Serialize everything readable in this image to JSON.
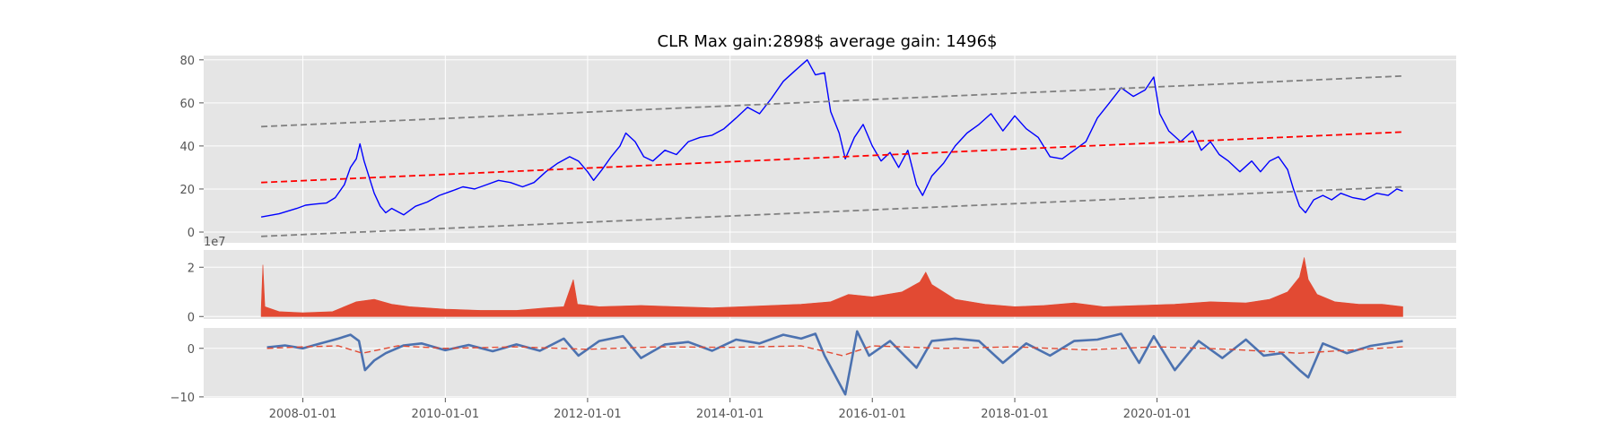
{
  "chart_data": [
    {
      "type": "line",
      "panel": "price",
      "title": "CLR Max gain:2898$  average gain: 1496$",
      "ylim": [
        -5,
        82
      ],
      "yticks": [
        0,
        20,
        40,
        60,
        80
      ],
      "grid": true,
      "series": [
        {
          "role": "price",
          "color": "#0000ff",
          "style": "solid",
          "points": [
            [
              "2007-06-01",
              7
            ],
            [
              "2007-09-01",
              8.5
            ],
            [
              "2007-12-01",
              11
            ],
            [
              "2008-01-15",
              12.5
            ],
            [
              "2008-03-01",
              13
            ],
            [
              "2008-05-01",
              13.5
            ],
            [
              "2008-06-15",
              16
            ],
            [
              "2008-08-01",
              22
            ],
            [
              "2008-09-01",
              30
            ],
            [
              "2008-10-01",
              34
            ],
            [
              "2008-10-20",
              41
            ],
            [
              "2008-11-10",
              33
            ],
            [
              "2008-12-01",
              27
            ],
            [
              "2009-01-01",
              18
            ],
            [
              "2009-02-01",
              12
            ],
            [
              "2009-03-01",
              9
            ],
            [
              "2009-04-01",
              11
            ],
            [
              "2009-06-01",
              8
            ],
            [
              "2009-08-01",
              12
            ],
            [
              "2009-10-01",
              14
            ],
            [
              "2009-12-01",
              17
            ],
            [
              "2010-02-01",
              19
            ],
            [
              "2010-04-01",
              21
            ],
            [
              "2010-06-01",
              20
            ],
            [
              "2010-08-01",
              22
            ],
            [
              "2010-10-01",
              24
            ],
            [
              "2010-12-01",
              23
            ],
            [
              "2011-02-01",
              21
            ],
            [
              "2011-04-01",
              23
            ],
            [
              "2011-06-01",
              28
            ],
            [
              "2011-08-01",
              32
            ],
            [
              "2011-10-01",
              35
            ],
            [
              "2011-11-15",
              33
            ],
            [
              "2012-01-01",
              28
            ],
            [
              "2012-02-01",
              24
            ],
            [
              "2012-03-15",
              29
            ],
            [
              "2012-05-01",
              35
            ],
            [
              "2012-06-15",
              40
            ],
            [
              "2012-07-15",
              46
            ],
            [
              "2012-09-01",
              42
            ],
            [
              "2012-10-15",
              35
            ],
            [
              "2012-12-01",
              33
            ],
            [
              "2013-02-01",
              38
            ],
            [
              "2013-04-01",
              36
            ],
            [
              "2013-06-01",
              42
            ],
            [
              "2013-08-01",
              44
            ],
            [
              "2013-10-01",
              45
            ],
            [
              "2013-12-01",
              48
            ],
            [
              "2014-02-01",
              53
            ],
            [
              "2014-04-01",
              58
            ],
            [
              "2014-06-01",
              55
            ],
            [
              "2014-08-01",
              62
            ],
            [
              "2014-10-01",
              70
            ],
            [
              "2014-12-01",
              75
            ],
            [
              "2015-02-01",
              80
            ],
            [
              "2015-03-15",
              73
            ],
            [
              "2015-05-01",
              74
            ],
            [
              "2015-06-01",
              56
            ],
            [
              "2015-07-15",
              46
            ],
            [
              "2015-08-15",
              34
            ],
            [
              "2015-10-01",
              44
            ],
            [
              "2015-11-15",
              50
            ],
            [
              "2016-01-01",
              40
            ],
            [
              "2016-02-15",
              33
            ],
            [
              "2016-04-01",
              37
            ],
            [
              "2016-05-15",
              30
            ],
            [
              "2016-07-01",
              38
            ],
            [
              "2016-08-15",
              22
            ],
            [
              "2016-09-15",
              17
            ],
            [
              "2016-11-01",
              26
            ],
            [
              "2017-01-01",
              32
            ],
            [
              "2017-03-01",
              40
            ],
            [
              "2017-05-01",
              46
            ],
            [
              "2017-07-01",
              50
            ],
            [
              "2017-09-01",
              55
            ],
            [
              "2017-11-01",
              47
            ],
            [
              "2018-01-01",
              54
            ],
            [
              "2018-03-01",
              48
            ],
            [
              "2018-05-01",
              44
            ],
            [
              "2018-07-01",
              35
            ],
            [
              "2018-09-01",
              34
            ],
            [
              "2018-11-01",
              38
            ],
            [
              "2019-01-01",
              42
            ],
            [
              "2019-03-01",
              53
            ],
            [
              "2019-05-01",
              60
            ],
            [
              "2019-07-01",
              67
            ],
            [
              "2019-09-01",
              63
            ],
            [
              "2019-11-01",
              66
            ],
            [
              "2019-12-15",
              72
            ],
            [
              "2020-01-15",
              55
            ],
            [
              "2020-03-01",
              47
            ],
            [
              "2020-05-01",
              42
            ],
            [
              "2020-07-01",
              47
            ],
            [
              "2020-08-15",
              38
            ],
            [
              "2020-10-01",
              42
            ],
            [
              "2020-11-15",
              36
            ],
            [
              "2021-01-01",
              33
            ],
            [
              "2021-03-01",
              28
            ],
            [
              "2021-05-01",
              33
            ],
            [
              "2021-06-15",
              28
            ],
            [
              "2021-08-01",
              33
            ],
            [
              "2021-09-15",
              35
            ],
            [
              "2021-11-01",
              29
            ],
            [
              "2021-12-01",
              20
            ],
            [
              "2022-01-01",
              12
            ],
            [
              "2022-02-01",
              9
            ],
            [
              "2022-03-15",
              15
            ],
            [
              "2022-05-01",
              17
            ],
            [
              "2022-06-15",
              15
            ],
            [
              "2022-08-01",
              18
            ],
            [
              "2022-10-01",
              16
            ],
            [
              "2022-12-01",
              15
            ],
            [
              "2023-02-01",
              18
            ],
            [
              "2023-04-01",
              17
            ],
            [
              "2023-05-15",
              20
            ],
            [
              "2023-06-15",
              19
            ]
          ]
        },
        {
          "role": "trend",
          "color": "#ff0000",
          "style": "dashed",
          "points": [
            [
              "2007-06-01",
              23
            ],
            [
              "2023-06-15",
              46.5
            ]
          ]
        },
        {
          "role": "upper-band",
          "color": "#808080",
          "style": "dashed",
          "points": [
            [
              "2007-06-01",
              49
            ],
            [
              "2023-06-15",
              72.5
            ]
          ]
        },
        {
          "role": "lower-band",
          "color": "#808080",
          "style": "dashed",
          "points": [
            [
              "2007-06-01",
              -2
            ],
            [
              "2023-06-15",
              21
            ]
          ]
        }
      ]
    },
    {
      "type": "area",
      "panel": "volume",
      "scale_label": "1e7",
      "ylim": [
        -0.1,
        2.7
      ],
      "yticks": [
        0,
        2
      ],
      "grid": true,
      "color": "#e24a33",
      "values": [
        [
          "2007-06-01",
          0.3
        ],
        [
          "2007-06-10",
          2.1
        ],
        [
          "2007-06-20",
          0.4
        ],
        [
          "2007-09-01",
          0.2
        ],
        [
          "2008-01-01",
          0.15
        ],
        [
          "2008-06-01",
          0.2
        ],
        [
          "2008-08-01",
          0.4
        ],
        [
          "2008-10-01",
          0.6
        ],
        [
          "2009-01-01",
          0.7
        ],
        [
          "2009-04-01",
          0.5
        ],
        [
          "2009-07-01",
          0.4
        ],
        [
          "2010-01-01",
          0.3
        ],
        [
          "2010-07-01",
          0.25
        ],
        [
          "2011-01-01",
          0.25
        ],
        [
          "2011-06-01",
          0.35
        ],
        [
          "2011-09-01",
          0.4
        ],
        [
          "2011-10-20",
          1.5
        ],
        [
          "2011-11-10",
          0.5
        ],
        [
          "2012-03-01",
          0.4
        ],
        [
          "2012-10-01",
          0.45
        ],
        [
          "2013-04-01",
          0.4
        ],
        [
          "2013-10-01",
          0.35
        ],
        [
          "2014-03-01",
          0.4
        ],
        [
          "2014-08-01",
          0.45
        ],
        [
          "2015-01-01",
          0.5
        ],
        [
          "2015-06-01",
          0.6
        ],
        [
          "2015-09-01",
          0.9
        ],
        [
          "2016-01-01",
          0.8
        ],
        [
          "2016-06-01",
          1.0
        ],
        [
          "2016-09-01",
          1.4
        ],
        [
          "2016-10-01",
          1.8
        ],
        [
          "2016-11-01",
          1.3
        ],
        [
          "2017-03-01",
          0.7
        ],
        [
          "2017-08-01",
          0.5
        ],
        [
          "2018-01-01",
          0.4
        ],
        [
          "2018-06-01",
          0.45
        ],
        [
          "2018-11-01",
          0.55
        ],
        [
          "2019-04-01",
          0.4
        ],
        [
          "2019-10-01",
          0.45
        ],
        [
          "2020-04-01",
          0.5
        ],
        [
          "2020-10-01",
          0.6
        ],
        [
          "2021-04-01",
          0.55
        ],
        [
          "2021-08-01",
          0.7
        ],
        [
          "2021-11-01",
          1.0
        ],
        [
          "2022-01-01",
          1.6
        ],
        [
          "2022-01-25",
          2.4
        ],
        [
          "2022-02-15",
          1.5
        ],
        [
          "2022-04-01",
          0.9
        ],
        [
          "2022-07-01",
          0.6
        ],
        [
          "2022-11-01",
          0.5
        ],
        [
          "2023-03-01",
          0.5
        ],
        [
          "2023-06-15",
          0.4
        ]
      ]
    },
    {
      "type": "line",
      "panel": "oscillator",
      "ylim": [
        -10.2,
        4.2
      ],
      "yticks": [
        -10,
        0
      ],
      "grid": true,
      "series": [
        {
          "role": "smoothed",
          "color": "#4c72b0",
          "style": "solid",
          "values": [
            [
              "2007-07-01",
              0.2
            ],
            [
              "2007-10-01",
              0.6
            ],
            [
              "2008-01-01",
              0.0
            ],
            [
              "2008-04-01",
              1.0
            ],
            [
              "2008-07-01",
              2.0
            ],
            [
              "2008-09-01",
              2.8
            ],
            [
              "2008-10-15",
              1.5
            ],
            [
              "2008-11-15",
              -4.5
            ],
            [
              "2009-01-01",
              -2.5
            ],
            [
              "2009-03-01",
              -1.0
            ],
            [
              "2009-06-01",
              0.6
            ],
            [
              "2009-09-01",
              1.0
            ],
            [
              "2010-01-01",
              -0.4
            ],
            [
              "2010-05-01",
              0.7
            ],
            [
              "2010-09-01",
              -0.6
            ],
            [
              "2011-01-01",
              0.8
            ],
            [
              "2011-05-01",
              -0.5
            ],
            [
              "2011-09-01",
              2.0
            ],
            [
              "2011-11-15",
              -1.5
            ],
            [
              "2012-03-01",
              1.5
            ],
            [
              "2012-07-01",
              2.5
            ],
            [
              "2012-10-01",
              -2.0
            ],
            [
              "2013-02-01",
              0.8
            ],
            [
              "2013-06-01",
              1.3
            ],
            [
              "2013-10-01",
              -0.5
            ],
            [
              "2014-02-01",
              1.8
            ],
            [
              "2014-06-01",
              1.0
            ],
            [
              "2014-10-01",
              2.8
            ],
            [
              "2015-01-01",
              2.0
            ],
            [
              "2015-03-15",
              3.0
            ],
            [
              "2015-05-01",
              -1.5
            ],
            [
              "2015-08-15",
              -9.5
            ],
            [
              "2015-10-15",
              3.5
            ],
            [
              "2015-12-15",
              -1.5
            ],
            [
              "2016-04-01",
              1.5
            ],
            [
              "2016-08-15",
              -4.0
            ],
            [
              "2016-11-01",
              1.5
            ],
            [
              "2017-03-01",
              2.0
            ],
            [
              "2017-07-01",
              1.5
            ],
            [
              "2017-11-01",
              -3.0
            ],
            [
              "2018-03-01",
              1.0
            ],
            [
              "2018-07-01",
              -1.5
            ],
            [
              "2018-11-01",
              1.5
            ],
            [
              "2019-03-01",
              1.8
            ],
            [
              "2019-07-01",
              3.0
            ],
            [
              "2019-10-01",
              -3.0
            ],
            [
              "2019-12-15",
              2.5
            ],
            [
              "2020-04-01",
              -4.5
            ],
            [
              "2020-08-01",
              1.5
            ],
            [
              "2020-12-01",
              -2.0
            ],
            [
              "2021-04-01",
              1.8
            ],
            [
              "2021-07-01",
              -1.5
            ],
            [
              "2021-10-01",
              -1.0
            ],
            [
              "2022-01-01",
              -4.5
            ],
            [
              "2022-02-15",
              -6.0
            ],
            [
              "2022-05-01",
              1.0
            ],
            [
              "2022-09-01",
              -1.0
            ],
            [
              "2023-01-01",
              0.5
            ],
            [
              "2023-06-15",
              1.5
            ]
          ]
        },
        {
          "role": "raw",
          "color": "#e24a33",
          "style": "dashed",
          "values": [
            [
              "2007-07-01",
              0.0
            ],
            [
              "2008-01-01",
              0.3
            ],
            [
              "2008-07-01",
              0.5
            ],
            [
              "2008-11-01",
              -1.0
            ],
            [
              "2009-05-01",
              0.5
            ],
            [
              "2010-01-01",
              0.0
            ],
            [
              "2011-01-01",
              0.3
            ],
            [
              "2012-01-01",
              -0.2
            ],
            [
              "2013-01-01",
              0.3
            ],
            [
              "2014-01-01",
              0.2
            ],
            [
              "2015-01-01",
              0.5
            ],
            [
              "2015-08-01",
              -1.5
            ],
            [
              "2016-01-01",
              0.5
            ],
            [
              "2017-01-01",
              0.0
            ],
            [
              "2018-01-01",
              0.3
            ],
            [
              "2019-01-01",
              -0.3
            ],
            [
              "2020-01-01",
              0.3
            ],
            [
              "2021-01-01",
              -0.2
            ],
            [
              "2022-01-01",
              -1.0
            ],
            [
              "2023-06-15",
              0.3
            ]
          ]
        }
      ]
    }
  ],
  "x_axis": {
    "tick_labels": [
      "2008-01-01",
      "2010-01-01",
      "2012-01-01",
      "2014-01-01",
      "2016-01-01",
      "2018-01-01",
      "2020-01-01"
    ]
  },
  "colors": {
    "panel_bg": "#e5e5e5",
    "grid": "#ffffff",
    "tick_text": "#555555"
  }
}
